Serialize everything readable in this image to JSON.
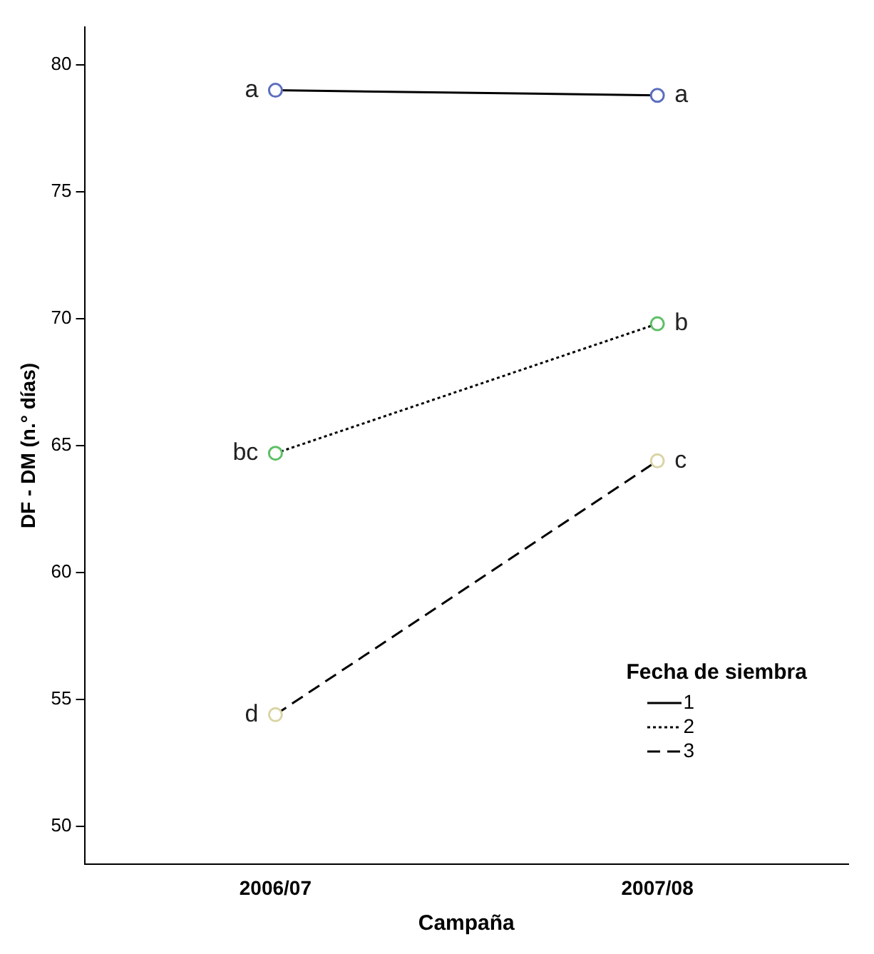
{
  "chart_data": {
    "type": "line",
    "xlabel": "Campaña",
    "ylabel": "DF - DM (n.° días)",
    "legend_title": "Fecha de siembra",
    "categories": [
      "2006/07",
      "2007/08"
    ],
    "series": [
      {
        "name": "1",
        "color": "#5b6fbf",
        "line_style": "solid",
        "values": [
          79.0,
          78.8
        ]
      },
      {
        "name": "2",
        "color": "#5cbf64",
        "line_style": "dotted",
        "values": [
          64.7,
          69.8
        ]
      },
      {
        "name": "3",
        "color": "#d9d4a4",
        "line_style": "dashed",
        "values": [
          54.4,
          64.4
        ]
      }
    ],
    "ylim": [
      48.5,
      81.5
    ],
    "yticks": [
      50,
      55,
      60,
      65,
      70,
      75,
      80
    ],
    "grid": false,
    "legend": "right",
    "marker": "circle",
    "annotations": [
      {
        "text": "a",
        "x": "2006/07",
        "y": 79.0
      },
      {
        "text": "a",
        "x": "2007/08",
        "y": 78.8
      },
      {
        "text": "bc",
        "x": "2006/07",
        "y": 64.7
      },
      {
        "text": "b",
        "x": "2007/08",
        "y": 69.8
      },
      {
        "text": "d",
        "x": "2006/07",
        "y": 54.4
      },
      {
        "text": "c",
        "x": "2007/08",
        "y": 64.4
      }
    ]
  }
}
